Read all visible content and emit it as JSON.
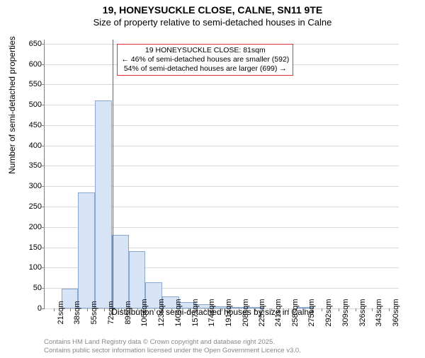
{
  "titles": {
    "main": "19, HONEYSUCKLE CLOSE, CALNE, SN11 9TE",
    "sub": "Size of property relative to semi-detached houses in Calne"
  },
  "axes": {
    "y_label": "Number of semi-detached properties",
    "x_label": "Distribution of semi-detached houses by size in Calne"
  },
  "chart": {
    "type": "histogram",
    "ylim": [
      0,
      660
    ],
    "y_ticks": [
      0,
      50,
      100,
      150,
      200,
      250,
      300,
      350,
      400,
      450,
      500,
      550,
      600,
      650
    ],
    "x_tick_labels": [
      "21sqm",
      "38sqm",
      "55sqm",
      "72sqm",
      "89sqm",
      "106sqm",
      "123sqm",
      "140sqm",
      "157sqm",
      "174sqm",
      "191sqm",
      "208sqm",
      "225sqm",
      "241sqm",
      "258sqm",
      "275sqm",
      "292sqm",
      "309sqm",
      "326sqm",
      "343sqm",
      "360sqm"
    ],
    "x_tick_positions": [
      21,
      38,
      55,
      72,
      89,
      106,
      123,
      140,
      157,
      174,
      191,
      208,
      225,
      241,
      258,
      275,
      292,
      309,
      326,
      343,
      360
    ],
    "x_range": [
      12,
      370
    ],
    "bars": [
      {
        "x_start": 29,
        "x_end": 46,
        "value": 48
      },
      {
        "x_start": 46,
        "x_end": 63,
        "value": 285
      },
      {
        "x_start": 63,
        "x_end": 80,
        "value": 510
      },
      {
        "x_start": 80,
        "x_end": 97,
        "value": 180
      },
      {
        "x_start": 97,
        "x_end": 114,
        "value": 140
      },
      {
        "x_start": 114,
        "x_end": 131,
        "value": 65
      },
      {
        "x_start": 131,
        "x_end": 148,
        "value": 30
      },
      {
        "x_start": 148,
        "x_end": 165,
        "value": 15
      },
      {
        "x_start": 165,
        "x_end": 182,
        "value": 10
      },
      {
        "x_start": 182,
        "x_end": 199,
        "value": 5
      },
      {
        "x_start": 199,
        "x_end": 216,
        "value": 4
      },
      {
        "x_start": 216,
        "x_end": 233,
        "value": 3
      },
      {
        "x_start": 267,
        "x_end": 284,
        "value": 2
      }
    ],
    "bar_fill": "#d6e4f5",
    "bar_border": "#8aa8cf",
    "grid_color": "#d9d9d9",
    "axis_color": "#808080",
    "background_color": "#ffffff",
    "reference_line": {
      "x": 81,
      "color": "#e42f2f"
    },
    "annotation": {
      "lines": [
        "19 HONEYSUCKLE CLOSE: 81sqm",
        "← 46% of semi-detached houses are smaller (592)",
        "54% of semi-detached houses are larger (699) →"
      ],
      "border_color": "#e42f2f"
    }
  },
  "footer": {
    "line1": "Contains HM Land Registry data © Crown copyright and database right 2025.",
    "line2": "Contains public sector information licensed under the Open Government Licence v3.0."
  }
}
